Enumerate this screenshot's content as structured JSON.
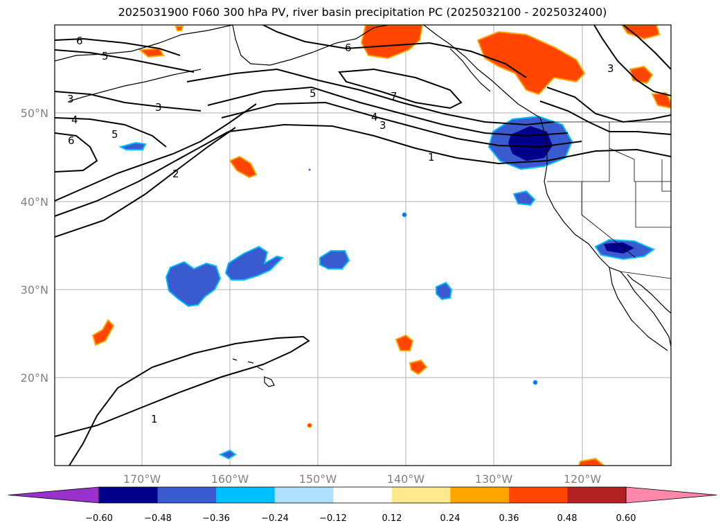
{
  "title": "2025031900 F060 300 hPa PV, river basin precipitation PC (2025032100 - 2025032400)",
  "lat_labels": [
    "50°N",
    "40°N",
    "30°N",
    "20°N"
  ],
  "lon_labels": [
    "170°W",
    "160°W",
    "150°W",
    "140°W",
    "130°W",
    "120°W"
  ],
  "contour_labels": [
    "6",
    "5",
    "6",
    "3",
    "3",
    "4",
    "5",
    "6",
    "2",
    "5",
    "7",
    "4",
    "3",
    "1",
    "3",
    "1"
  ],
  "colorbar": {
    "ticks": [
      "−0.60",
      "−0.48",
      "−0.36",
      "−0.24",
      "−0.12",
      "0.12",
      "0.24",
      "0.36",
      "0.48",
      "0.60"
    ],
    "colors": [
      "#9932cc",
      "#00008b",
      "#3a5bcf",
      "#00bfff",
      "#aee0fb",
      "#ffffff",
      "#ffe98c",
      "#ffa500",
      "#ff4500",
      "#b22222",
      "#ff88aa"
    ]
  },
  "colors": {
    "contour": "#000000",
    "grid": "#b0b0b0",
    "coast": "#000000"
  }
}
